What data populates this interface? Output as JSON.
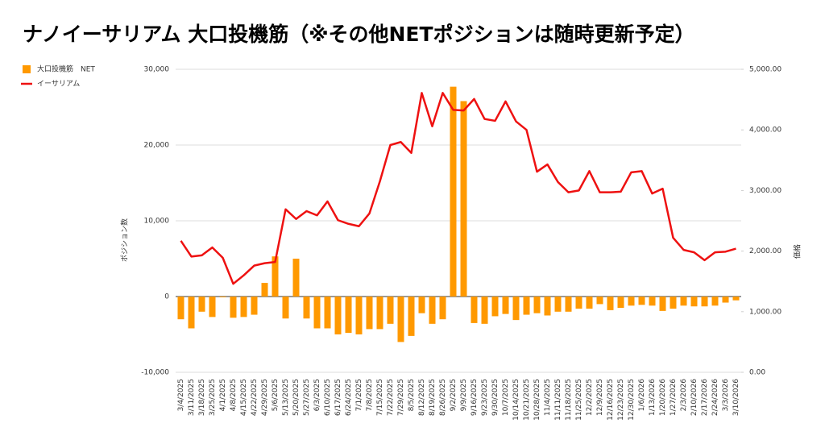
{
  "chart_data": {
    "type": "bar_line",
    "title": "ナノイーサリアム 大口投機筋（※その他NETポジションは随時更新予定）",
    "y_label": "ポジション数",
    "y2_label": "価格",
    "legend": "top-left",
    "categories": [
      "3/4/2025",
      "3/11/2025",
      "3/18/2025",
      "3/25/2025",
      "4/1/2025",
      "4/8/2025",
      "4/15/2025",
      "4/22/2025",
      "4/29/2025",
      "5/6/2025",
      "5/13/2025",
      "5/20/2025",
      "5/27/2025",
      "6/3/2025",
      "6/10/2025",
      "6/17/2025",
      "6/24/2025",
      "7/1/2025",
      "7/8/2025",
      "7/15/2025",
      "7/22/2025",
      "7/29/2025",
      "8/5/2025",
      "8/12/2025",
      "8/19/2025",
      "8/26/2025",
      "9/2/2025",
      "9/9/2025",
      "9/16/2025",
      "9/23/2025",
      "9/30/2025",
      "10/7/2025",
      "10/14/2025",
      "10/21/2025",
      "10/28/2025",
      "11/4/2025",
      "11/11/2025",
      "11/18/2025",
      "11/25/2025",
      "12/2/2025",
      "12/9/2025",
      "12/16/2025",
      "12/23/2025",
      "12/30/2025",
      "1/6/2026",
      "1/13/2026",
      "1/20/2026",
      "1/27/2026",
      "2/3/2026",
      "2/10/2026",
      "2/17/2026",
      "2/24/2026",
      "3/3/2026",
      "3/10/2026"
    ],
    "series": [
      {
        "name": "大口投機筋　NET",
        "color": "#ff9900",
        "type": "bar",
        "values": [
          -3000,
          -4200,
          -2000,
          -2700,
          -100,
          -2800,
          -2700,
          -2400,
          1800,
          5300,
          -2900,
          5000,
          -2900,
          -4200,
          -4200,
          -5000,
          -4800,
          -5000,
          -4300,
          -4300,
          -3600,
          -6000,
          -5200,
          -2200,
          -3600,
          -3000,
          27700,
          25800,
          -3500,
          -3600,
          -2600,
          -2300,
          -3100,
          -2400,
          -2200,
          -2500,
          -2000,
          -2000,
          -1600,
          -1600,
          -1000,
          -1800,
          -1500,
          -1200,
          -1100,
          -1200,
          -1900,
          -1600,
          -1200,
          -1300,
          -1300,
          -1200,
          -800,
          -500
        ]
      },
      {
        "name": "イーサリアム",
        "color": "#ee1111",
        "type": "line",
        "axis": "y2",
        "values": [
          2170,
          1910,
          1930,
          2060,
          1890,
          1460,
          1600,
          1760,
          1800,
          1820,
          2690,
          2530,
          2660,
          2590,
          2820,
          2510,
          2450,
          2410,
          2620,
          3150,
          3750,
          3800,
          3620,
          4610,
          4060,
          4610,
          4330,
          4320,
          4510,
          4180,
          4150,
          4470,
          4140,
          4000,
          3310,
          3430,
          3140,
          2970,
          3000,
          3320,
          2970,
          2970,
          2980,
          3300,
          3320,
          2950,
          3030,
          2220,
          2020,
          1980,
          1850,
          1980,
          1990,
          2040
        ]
      }
    ],
    "ylim": [
      -10000,
      30000
    ],
    "yticks": [
      {
        "value": -10000,
        "label": "-10,000"
      },
      0,
      {
        "value": 10000,
        "label": "10,000"
      },
      {
        "value": 20000,
        "label": "20,000"
      },
      {
        "value": 30000,
        "label": "30,000"
      }
    ],
    "y2lim": [
      0,
      5000
    ],
    "y2ticks": [
      {
        "value": 0,
        "label": "0.00"
      },
      {
        "value": 1000,
        "label": "1,000.00"
      },
      {
        "value": 2000,
        "label": "2,000.00"
      },
      {
        "value": 3000,
        "label": "3,000.00"
      },
      {
        "value": 4000,
        "label": "4,000.00"
      },
      {
        "value": 5000,
        "label": "5,000.00"
      }
    ],
    "grid": true
  }
}
